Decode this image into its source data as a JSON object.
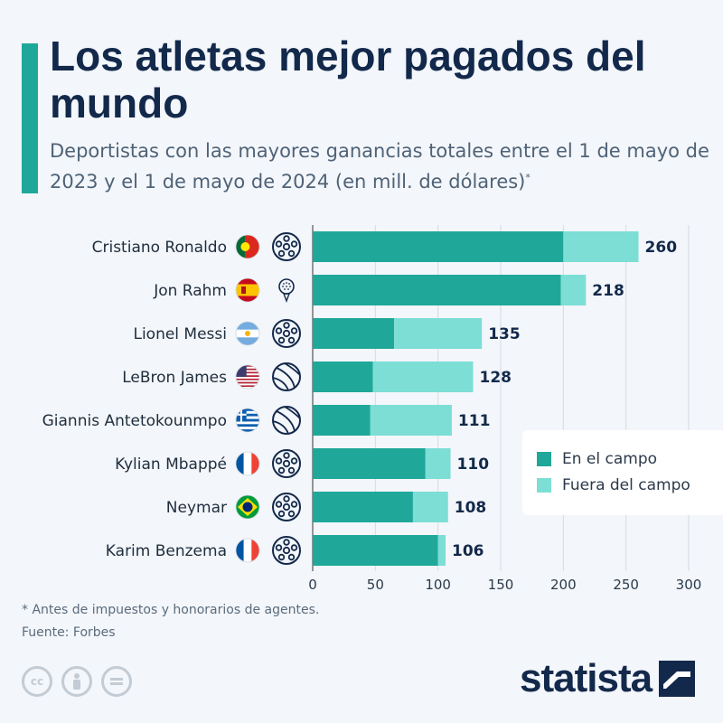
{
  "title": "Los atletas mejor pagados del mundo",
  "subtitle": "Deportistas con las mayores ganancias totales entre el 1 de mayo de 2023 y el 1 de mayo de 2024 (en mill. de dólares)",
  "subtitle_mark": "*",
  "footnote": "* Antes de impuestos y honorarios de agentes.",
  "source": "Fuente: Forbes",
  "brand": "statista",
  "colors": {
    "accent": "#1fa89a",
    "on_field": "#1fa89a",
    "off_field": "#7dded6",
    "title": "#13294b",
    "background": "#f3f6fa"
  },
  "legend": [
    {
      "label": "En el campo",
      "color": "#1fa89a"
    },
    {
      "label": "Fuera del campo",
      "color": "#7dded6"
    }
  ],
  "license_icons": [
    "cc-icon",
    "person-icon",
    "equals-icon"
  ],
  "athletes": [
    {
      "name": "Cristiano Ronaldo",
      "flag": "portugal-flag-icon",
      "sport": "soccer-ball-icon"
    },
    {
      "name": "Jon Rahm",
      "flag": "spain-flag-icon",
      "sport": "golf-ball-icon"
    },
    {
      "name": "Lionel Messi",
      "flag": "argentina-flag-icon",
      "sport": "soccer-ball-icon"
    },
    {
      "name": "LeBron James",
      "flag": "usa-flag-icon",
      "sport": "basketball-icon"
    },
    {
      "name": "Giannis Antetokounmpo",
      "flag": "greece-flag-icon",
      "sport": "basketball-icon"
    },
    {
      "name": "Kylian Mbappé",
      "flag": "france-flag-icon",
      "sport": "soccer-ball-icon"
    },
    {
      "name": "Neymar",
      "flag": "brazil-flag-icon",
      "sport": "soccer-ball-icon"
    },
    {
      "name": "Karim Benzema",
      "flag": "france-flag-icon",
      "sport": "soccer-ball-icon"
    }
  ],
  "chart_data": {
    "type": "bar",
    "orientation": "horizontal",
    "stacked": true,
    "categories": [
      "Cristiano Ronaldo",
      "Jon Rahm",
      "Lionel Messi",
      "LeBron James",
      "Giannis Antetokounmpo",
      "Kylian Mbappé",
      "Neymar",
      "Karim Benzema"
    ],
    "series": [
      {
        "name": "En el campo",
        "values": [
          200,
          198,
          65,
          48,
          46,
          90,
          80,
          100
        ]
      },
      {
        "name": "Fuera del campo",
        "values": [
          60,
          20,
          70,
          80,
          65,
          20,
          28,
          6
        ]
      }
    ],
    "totals": [
      260,
      218,
      135,
      128,
      111,
      110,
      108,
      106
    ],
    "xlim": [
      0,
      300
    ],
    "xticks": [
      0,
      50,
      100,
      150,
      200,
      250,
      300
    ],
    "grid": true,
    "legend_position": "right"
  }
}
